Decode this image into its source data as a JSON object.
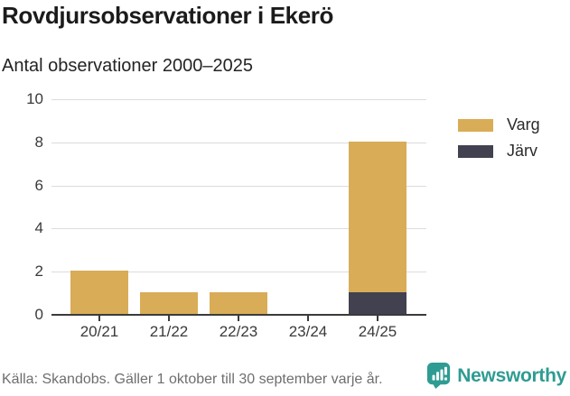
{
  "header": {
    "title": "Rovdjursobservationer i Ekerö",
    "subtitle": "Antal observationer 2000–2025"
  },
  "chart_data": {
    "type": "bar",
    "stacked": true,
    "title": "Rovdjursobservationer i Ekerö",
    "subtitle": "Antal observationer 2000–2025",
    "categories": [
      "20/21",
      "21/22",
      "22/23",
      "23/24",
      "24/25"
    ],
    "series": [
      {
        "name": "Järv",
        "color": "#41414f",
        "values": [
          0,
          0,
          0,
          0,
          1
        ]
      },
      {
        "name": "Varg",
        "color": "#d9ac57",
        "values": [
          2,
          1,
          1,
          0,
          7
        ]
      }
    ],
    "stack_order_bottom_to_top": [
      "Järv",
      "Varg"
    ],
    "totals": [
      2,
      1,
      1,
      0,
      8
    ],
    "xlabel": "",
    "ylabel": "",
    "ylim": [
      0,
      10
    ],
    "yticks": [
      0,
      2,
      4,
      6,
      8,
      10
    ],
    "grid": true,
    "legend_position": "right"
  },
  "legend": {
    "items": [
      {
        "label": "Varg",
        "color": "#d9ac57"
      },
      {
        "label": "Järv",
        "color": "#41414f"
      }
    ]
  },
  "footer": {
    "source": "Källa: Skandobs. Gäller 1 oktober till 30 september varje år.",
    "brand": "Newsworthy"
  },
  "colors": {
    "varg": "#d9ac57",
    "jarv": "#41414f",
    "teal_brand": "#2e9c92",
    "gridline": "#dcdcdc",
    "axis": "#3b3b3b"
  }
}
